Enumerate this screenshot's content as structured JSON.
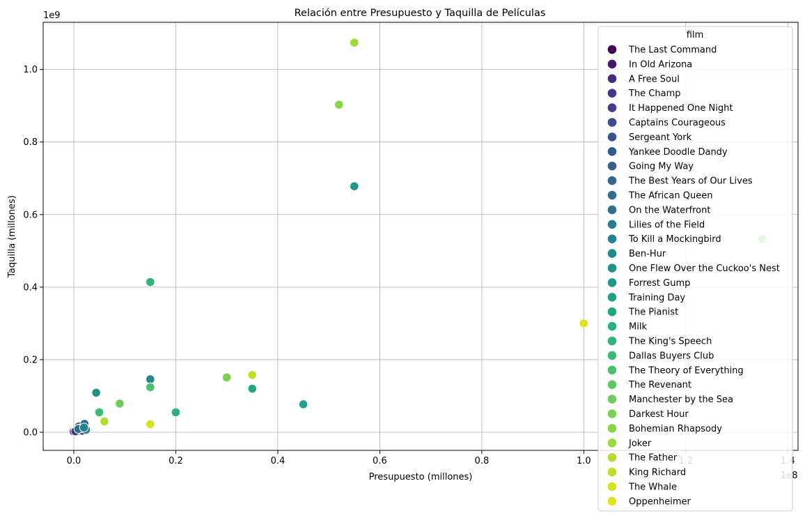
{
  "chart_data": {
    "type": "scatter",
    "title": "Relación entre Presupuesto y Taquilla de Películas",
    "xlabel": "Presupuesto (millones)",
    "ylabel": "Taquilla (millones)",
    "x_offset_label": "1e8",
    "y_offset_label": "1e9",
    "xlim": [
      -0.06,
      1.42
    ],
    "ylim": [
      -0.05,
      1.13
    ],
    "xticks": [
      0.0,
      0.2,
      0.4,
      0.6,
      0.8,
      1.0,
      1.2,
      1.4
    ],
    "xtick_labels": [
      "0.0",
      "0.2",
      "0.4",
      "0.6",
      "0.8",
      "1.0",
      "1.2",
      "1.4"
    ],
    "yticks": [
      0.0,
      0.2,
      0.4,
      0.6,
      0.8,
      1.0
    ],
    "ytick_labels": [
      "0.0",
      "0.2",
      "0.4",
      "0.6",
      "0.8",
      "1.0"
    ],
    "grid": true,
    "legend_title": "film",
    "legend_position": "upper-right",
    "series": [
      {
        "name": "The Last Command",
        "color": "#440154",
        "points": [
          [
            0.0,
            0.002
          ]
        ]
      },
      {
        "name": "In Old Arizona",
        "color": "#461868",
        "points": [
          [
            0.003,
            0.003
          ]
        ]
      },
      {
        "name": "A Free Soul",
        "color": "#472a7a",
        "points": [
          [
            0.006,
            0.004
          ]
        ]
      },
      {
        "name": "The Champ",
        "color": "#453781",
        "points": [
          [
            0.007,
            0.003
          ]
        ]
      },
      {
        "name": "It Happened One Night",
        "color": "#433e85",
        "points": [
          [
            0.003,
            0.0025
          ]
        ]
      },
      {
        "name": "Captains Courageous",
        "color": "#3e4a89",
        "points": [
          [
            0.017,
            0.004
          ]
        ]
      },
      {
        "name": "Sergeant York",
        "color": "#3b528b",
        "points": [
          [
            0.016,
            0.016
          ]
        ]
      },
      {
        "name": "Yankee Doodle Dandy",
        "color": "#375a8c",
        "points": [
          [
            0.013,
            0.011
          ]
        ]
      },
      {
        "name": "Going My Way",
        "color": "#34618d",
        "points": [
          [
            0.01,
            0.016
          ]
        ]
      },
      {
        "name": "The Best Years of Our Lives",
        "color": "#31688e",
        "points": [
          [
            0.021,
            0.023
          ]
        ]
      },
      {
        "name": "The African Queen",
        "color": "#2e6f8e",
        "points": [
          [
            0.01,
            0.01
          ]
        ]
      },
      {
        "name": "On the Waterfront",
        "color": "#2c728e",
        "points": [
          [
            0.009,
            0.009
          ]
        ]
      },
      {
        "name": "Lilies of the Field",
        "color": "#297b8e",
        "points": [
          [
            0.024,
            0.007
          ]
        ]
      },
      {
        "name": "To Kill a Mockingbird",
        "color": "#26828e",
        "points": [
          [
            0.02,
            0.013
          ]
        ]
      },
      {
        "name": "Ben-Hur",
        "color": "#23898e",
        "points": [
          [
            0.15,
            0.146
          ]
        ]
      },
      {
        "name": "One Flew Over the Cuckoo's Nest",
        "color": "#21918c",
        "points": [
          [
            0.044,
            0.109
          ]
        ]
      },
      {
        "name": "Forrest Gump",
        "color": "#1f988b",
        "points": [
          [
            0.55,
            0.678
          ]
        ]
      },
      {
        "name": "Training Day",
        "color": "#1fa088",
        "points": [
          [
            0.45,
            0.077
          ]
        ]
      },
      {
        "name": "The Pianist",
        "color": "#22a785",
        "points": [
          [
            0.35,
            0.12
          ]
        ]
      },
      {
        "name": "Milk",
        "color": "#2ab07f",
        "points": [
          [
            0.2,
            0.055
          ]
        ]
      },
      {
        "name": "The King's Speech",
        "color": "#2fb47c",
        "points": [
          [
            0.15,
            0.414
          ]
        ]
      },
      {
        "name": "Dallas Buyers Club",
        "color": "#3bbb75",
        "points": [
          [
            0.05,
            0.055
          ]
        ]
      },
      {
        "name": "The Theory of Everything",
        "color": "#4ac16d",
        "points": [
          [
            0.15,
            0.124
          ]
        ]
      },
      {
        "name": "The Revenant",
        "color": "#5ec962",
        "points": [
          [
            1.35,
            0.533
          ]
        ]
      },
      {
        "name": "Manchester by the Sea",
        "color": "#6ccd5a",
        "points": [
          [
            0.09,
            0.079
          ]
        ]
      },
      {
        "name": "Darkest Hour",
        "color": "#7ad151",
        "points": [
          [
            0.3,
            0.151
          ]
        ]
      },
      {
        "name": "Bohemian Rhapsody",
        "color": "#89d548",
        "points": [
          [
            0.52,
            0.903
          ]
        ]
      },
      {
        "name": "Joker",
        "color": "#9bd93c",
        "points": [
          [
            0.55,
            1.074
          ]
        ]
      },
      {
        "name": "The Father",
        "color": "#b2dd2d",
        "points": [
          [
            0.06,
            0.03
          ]
        ]
      },
      {
        "name": "King Richard",
        "color": "#c2df23",
        "points": [
          [
            0.35,
            0.158
          ]
        ]
      },
      {
        "name": "The Whale",
        "color": "#d8e219",
        "points": [
          [
            0.15,
            0.022
          ]
        ]
      },
      {
        "name": "Oppenheimer",
        "color": "#e0e31a",
        "points": [
          [
            1.0,
            0.3
          ]
        ]
      }
    ]
  }
}
